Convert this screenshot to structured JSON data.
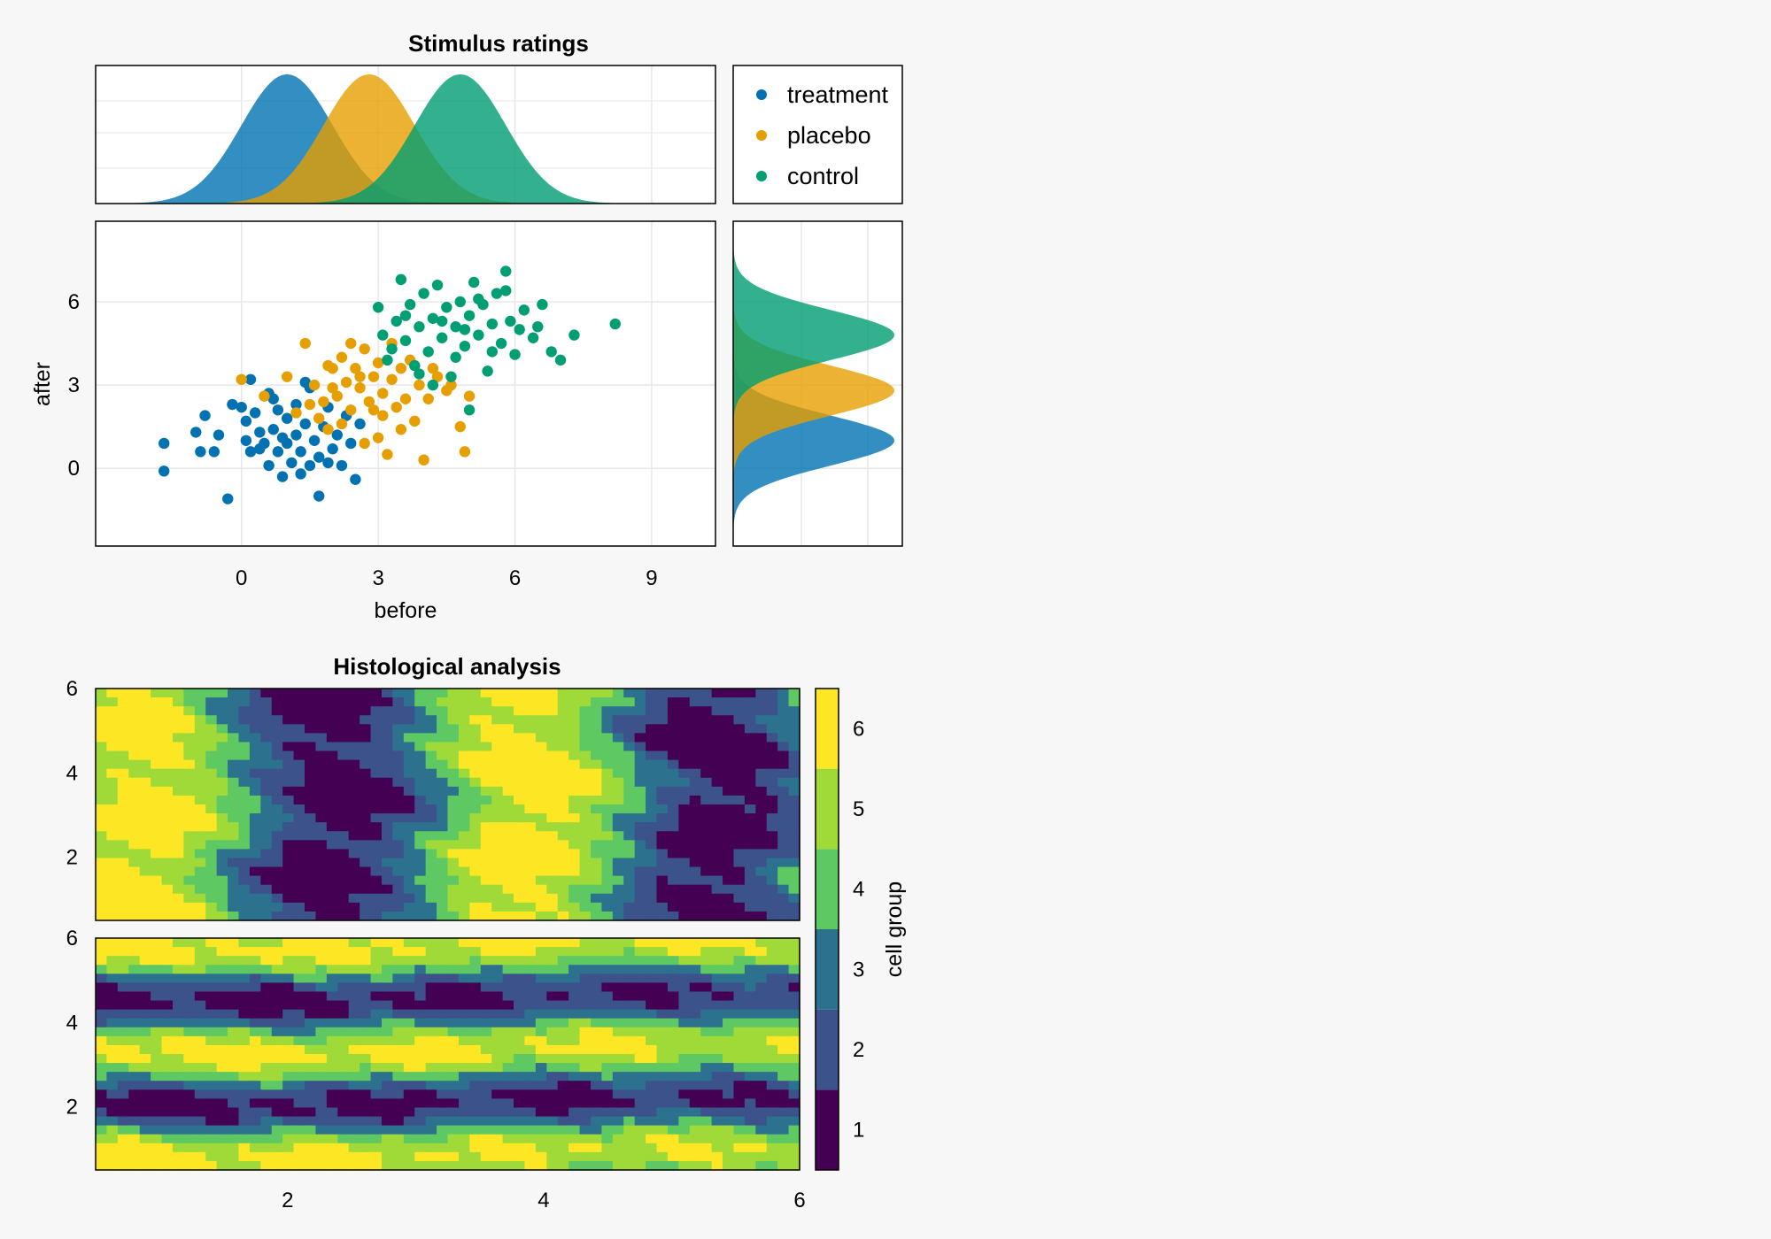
{
  "colors": {
    "treatment": "#0072b2",
    "placebo": "#e69f00",
    "control": "#009e73",
    "viridis": [
      "#440154",
      "#3b528b",
      "#2c728e",
      "#21918c",
      "#5ec962",
      "#a0da39",
      "#fde725"
    ]
  },
  "chart_data": [
    {
      "type": "scatter",
      "title": "Stimulus ratings",
      "xlabel": "before",
      "ylabel": "after",
      "xlim": [
        -3.2,
        10.4
      ],
      "ylim": [
        -2.8,
        8.9
      ],
      "xticks": [
        "0",
        "3",
        "6",
        "9"
      ],
      "xtick_values": [
        0,
        3,
        6,
        9
      ],
      "yticks": [
        "0",
        "3",
        "6"
      ],
      "ytick_values": [
        0,
        3,
        6
      ],
      "legend": [
        "treatment",
        "placebo",
        "control"
      ],
      "series": [
        {
          "name": "treatment",
          "mean": [
            1.0,
            1.0
          ],
          "sd": [
            1.0,
            0.9
          ],
          "points": [
            [
              -1.7,
              0.9
            ],
            [
              -1.7,
              -0.1
            ],
            [
              -1.0,
              1.3
            ],
            [
              -0.9,
              0.6
            ],
            [
              -0.8,
              1.9
            ],
            [
              -0.6,
              0.6
            ],
            [
              -0.5,
              1.2
            ],
            [
              -0.3,
              -1.1
            ],
            [
              -0.2,
              2.3
            ],
            [
              0,
              2.2
            ],
            [
              0.1,
              1.7
            ],
            [
              0.2,
              3.2
            ],
            [
              0.2,
              0.6
            ],
            [
              0.3,
              2.0
            ],
            [
              0.4,
              1.3
            ],
            [
              0.5,
              0.9
            ],
            [
              0.6,
              2.7
            ],
            [
              0.6,
              0.1
            ],
            [
              0.7,
              1.4
            ],
            [
              0.8,
              0.6
            ],
            [
              0.8,
              2.1
            ],
            [
              0.9,
              -0.3
            ],
            [
              1.0,
              0.9
            ],
            [
              1.0,
              1.8
            ],
            [
              1.1,
              0.2
            ],
            [
              1.2,
              1.2
            ],
            [
              1.2,
              2.3
            ],
            [
              1.3,
              0.6
            ],
            [
              1.4,
              1.6
            ],
            [
              1.5,
              0.1
            ],
            [
              1.5,
              2.9
            ],
            [
              1.6,
              1.0
            ],
            [
              1.7,
              0.4
            ],
            [
              1.7,
              -1.0
            ],
            [
              1.8,
              1.5
            ],
            [
              1.9,
              2.2
            ],
            [
              2.0,
              0.7
            ],
            [
              2.1,
              1.2
            ],
            [
              2.2,
              0.1
            ],
            [
              2.3,
              1.9
            ],
            [
              2.4,
              0.9
            ],
            [
              2.5,
              -0.4
            ],
            [
              0.4,
              0.7
            ],
            [
              0.9,
              1.1
            ],
            [
              1.3,
              -0.2
            ],
            [
              0.1,
              1.0
            ],
            [
              1.9,
              0.2
            ],
            [
              1.4,
              3.1
            ],
            [
              0.7,
              2.5
            ],
            [
              2.6,
              1.6
            ]
          ]
        },
        {
          "name": "placebo",
          "mean": [
            2.8,
            2.8
          ],
          "sd": [
            1.0,
            0.9
          ],
          "points": [
            [
              0,
              3.2
            ],
            [
              0.5,
              2.6
            ],
            [
              1.0,
              3.3
            ],
            [
              1.4,
              4.5
            ],
            [
              1.5,
              2.3
            ],
            [
              1.6,
              3.0
            ],
            [
              1.8,
              2.4
            ],
            [
              1.9,
              1.4
            ],
            [
              2.0,
              3.6
            ],
            [
              2.1,
              2.6
            ],
            [
              2.2,
              4.0
            ],
            [
              2.3,
              3.1
            ],
            [
              2.4,
              2.1
            ],
            [
              2.5,
              3.6
            ],
            [
              2.6,
              2.9
            ],
            [
              2.7,
              4.3
            ],
            [
              2.8,
              2.4
            ],
            [
              2.9,
              3.3
            ],
            [
              3.0,
              1.1
            ],
            [
              3.0,
              3.8
            ],
            [
              3.1,
              2.7
            ],
            [
              3.2,
              0.5
            ],
            [
              3.3,
              3.2
            ],
            [
              3.4,
              2.2
            ],
            [
              3.5,
              3.6
            ],
            [
              3.6,
              2.5
            ],
            [
              3.8,
              1.7
            ],
            [
              3.9,
              3.0
            ],
            [
              4.0,
              0.3
            ],
            [
              4.1,
              2.5
            ],
            [
              4.3,
              3.3
            ],
            [
              4.5,
              2.8
            ],
            [
              4.8,
              1.5
            ],
            [
              4.9,
              0.6
            ],
            [
              5.0,
              2.6
            ],
            [
              2.2,
              1.6
            ],
            [
              2.6,
              3.3
            ],
            [
              3.3,
              4.5
            ],
            [
              1.2,
              2.0
            ],
            [
              2.9,
              2.1
            ],
            [
              3.7,
              3.9
            ],
            [
              2.4,
              4.5
            ],
            [
              4.6,
              3.0
            ],
            [
              1.7,
              1.8
            ],
            [
              3.1,
              1.9
            ],
            [
              2.0,
              2.9
            ],
            [
              3.5,
              1.4
            ],
            [
              4.2,
              3.6
            ],
            [
              2.7,
              0.9
            ],
            [
              1.9,
              3.7
            ]
          ]
        },
        {
          "name": "control",
          "mean": [
            4.8,
            4.8
          ],
          "sd": [
            1.0,
            0.9
          ],
          "points": [
            [
              3.0,
              5.8
            ],
            [
              3.1,
              4.8
            ],
            [
              3.2,
              3.9
            ],
            [
              3.4,
              5.3
            ],
            [
              3.5,
              6.8
            ],
            [
              3.6,
              4.6
            ],
            [
              3.7,
              5.9
            ],
            [
              3.8,
              3.7
            ],
            [
              3.9,
              5.1
            ],
            [
              4.0,
              6.3
            ],
            [
              4.1,
              4.2
            ],
            [
              4.2,
              5.4
            ],
            [
              4.3,
              6.6
            ],
            [
              4.4,
              4.7
            ],
            [
              4.5,
              5.8
            ],
            [
              4.6,
              3.3
            ],
            [
              4.7,
              5.1
            ],
            [
              4.8,
              6.0
            ],
            [
              4.9,
              4.4
            ],
            [
              5.0,
              5.5
            ],
            [
              5.1,
              6.7
            ],
            [
              5.2,
              4.8
            ],
            [
              5.3,
              5.9
            ],
            [
              5.4,
              3.5
            ],
            [
              5.5,
              5.2
            ],
            [
              5.6,
              6.3
            ],
            [
              5.7,
              4.5
            ],
            [
              5.8,
              7.1
            ],
            [
              5.9,
              5.3
            ],
            [
              6.0,
              4.1
            ],
            [
              6.2,
              5.7
            ],
            [
              6.4,
              4.7
            ],
            [
              6.6,
              5.9
            ],
            [
              6.8,
              4.2
            ],
            [
              7.3,
              4.8
            ],
            [
              8.2,
              5.2
            ],
            [
              5.0,
              2.1
            ],
            [
              3.3,
              4.3
            ],
            [
              4.4,
              5.3
            ],
            [
              5.2,
              6.1
            ],
            [
              6.1,
              5.0
            ],
            [
              4.7,
              4.0
            ],
            [
              5.5,
              4.2
            ],
            [
              3.9,
              3.4
            ],
            [
              6.5,
              5.1
            ],
            [
              7.0,
              3.9
            ],
            [
              3.6,
              5.5
            ],
            [
              4.9,
              5.0
            ],
            [
              5.8,
              6.4
            ],
            [
              4.2,
              3.0
            ]
          ]
        }
      ]
    },
    {
      "type": "heatmap",
      "title": "Histological analysis",
      "subtype": "filled contour",
      "panels": 2,
      "xlim": [
        0.5,
        6
      ],
      "ylim": [
        0.5,
        6
      ],
      "xticks": [
        "2",
        "4",
        "6"
      ],
      "xtick_values": [
        2,
        4,
        6
      ],
      "yticks": [
        "2",
        "4",
        "6"
      ],
      "ytick_values": [
        2,
        4,
        6
      ],
      "colorbar_label": "cell group",
      "colorbar_ticks": [
        "1",
        "2",
        "3",
        "4",
        "5",
        "6"
      ],
      "colorbar_range": [
        0.5,
        6.5
      ],
      "levels": [
        1,
        2,
        3,
        4,
        5,
        6
      ]
    }
  ]
}
